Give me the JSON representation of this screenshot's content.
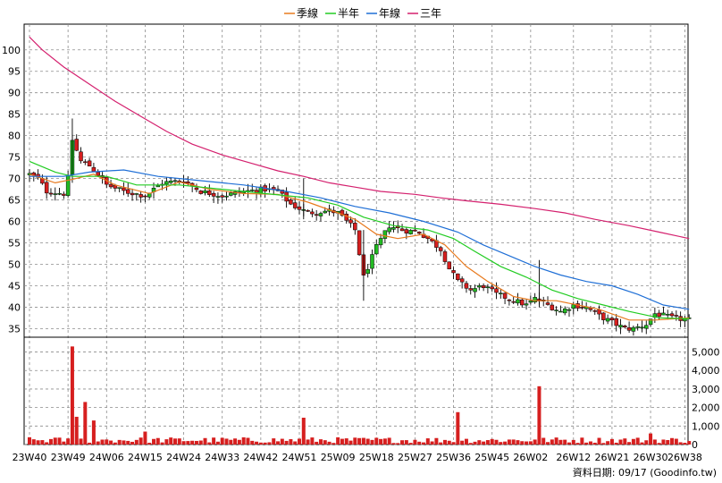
{
  "chart_data": {
    "type": "candlestick",
    "legend": [
      {
        "name": "季線",
        "color": "#e87a1e"
      },
      {
        "name": "半年",
        "color": "#22cc22"
      },
      {
        "name": "年線",
        "color": "#1f6fd6"
      },
      {
        "name": "三年",
        "color": "#d4206e"
      }
    ],
    "price_ylim": [
      33,
      106
    ],
    "price_ticks": [
      35,
      40,
      45,
      50,
      55,
      60,
      65,
      70,
      75,
      80,
      85,
      90,
      95,
      100
    ],
    "volume_ylim": [
      0,
      5800
    ],
    "volume_ticks": [
      0,
      1000,
      2000,
      3000,
      4000,
      5000
    ],
    "volume_tick_labels": [
      "0",
      "1,000",
      "2,000",
      "3,000",
      "4,000",
      "5,000"
    ],
    "x_tick_labels": [
      "23W40",
      "23W49",
      "24W06",
      "24W15",
      "24W24",
      "24W33",
      "24W42",
      "24W51",
      "25W09",
      "25W18",
      "25W27",
      "25W36",
      "25W45",
      "26W02",
      "26W12",
      "26W21",
      "26W30",
      "26W38"
    ],
    "x_tick_index": [
      0,
      9,
      18,
      27,
      36,
      45,
      54,
      63,
      72,
      81,
      90,
      99,
      108,
      117,
      127,
      136,
      145,
      153
    ],
    "grid": true,
    "legend_position": "top-center",
    "ma_series": [
      {
        "name": "季線",
        "color": "#e87a1e",
        "points": [
          [
            0,
            71
          ],
          [
            6,
            69
          ],
          [
            10,
            69.8
          ],
          [
            15,
            71
          ],
          [
            20,
            68.5
          ],
          [
            28,
            66.5
          ],
          [
            35,
            69.2
          ],
          [
            42,
            67.5
          ],
          [
            50,
            66.5
          ],
          [
            58,
            66.3
          ],
          [
            65,
            64.5
          ],
          [
            72,
            62
          ],
          [
            76,
            60.5
          ],
          [
            81,
            57
          ],
          [
            86,
            56
          ],
          [
            92,
            57
          ],
          [
            97,
            54.5
          ],
          [
            102,
            49.5
          ],
          [
            107,
            46
          ],
          [
            113,
            42.5
          ],
          [
            118,
            41.5
          ],
          [
            123,
            41.5
          ],
          [
            128,
            40.5
          ],
          [
            133,
            39.5
          ],
          [
            140,
            37
          ],
          [
            146,
            37
          ],
          [
            154,
            37.5
          ]
        ]
      },
      {
        "name": "半年",
        "color": "#22cc22",
        "points": [
          [
            0,
            74
          ],
          [
            6,
            71.5
          ],
          [
            10,
            70.5
          ],
          [
            18,
            70.5
          ],
          [
            25,
            68.5
          ],
          [
            35,
            68.5
          ],
          [
            45,
            67.5
          ],
          [
            55,
            66.5
          ],
          [
            65,
            65.5
          ],
          [
            72,
            63.8
          ],
          [
            78,
            61
          ],
          [
            85,
            59
          ],
          [
            93,
            58
          ],
          [
            99,
            56
          ],
          [
            104,
            53
          ],
          [
            110,
            49.5
          ],
          [
            116,
            47
          ],
          [
            122,
            44
          ],
          [
            128,
            42
          ],
          [
            134,
            40.5
          ],
          [
            140,
            39
          ],
          [
            147,
            37.5
          ],
          [
            154,
            37.3
          ]
        ]
      },
      {
        "name": "年線",
        "color": "#1f6fd6",
        "points": [
          [
            0,
            70.5
          ],
          [
            8,
            70.5
          ],
          [
            14,
            71.5
          ],
          [
            22,
            72
          ],
          [
            30,
            70.5
          ],
          [
            40,
            69.5
          ],
          [
            50,
            68.5
          ],
          [
            60,
            67
          ],
          [
            68,
            65.5
          ],
          [
            76,
            63.5
          ],
          [
            84,
            62
          ],
          [
            92,
            60
          ],
          [
            100,
            57.5
          ],
          [
            106,
            54.5
          ],
          [
            112,
            52
          ],
          [
            118,
            49.5
          ],
          [
            124,
            47.5
          ],
          [
            130,
            46
          ],
          [
            136,
            45
          ],
          [
            142,
            43
          ],
          [
            148,
            40.5
          ],
          [
            154,
            39.5
          ]
        ]
      },
      {
        "name": "三年",
        "color": "#d4206e",
        "points": [
          [
            0,
            103
          ],
          [
            3,
            100
          ],
          [
            8,
            96
          ],
          [
            14,
            92
          ],
          [
            20,
            88
          ],
          [
            26,
            84.5
          ],
          [
            32,
            81
          ],
          [
            38,
            78
          ],
          [
            45,
            75.5
          ],
          [
            52,
            73.5
          ],
          [
            58,
            71.8
          ],
          [
            64,
            70.5
          ],
          [
            70,
            69
          ],
          [
            76,
            68
          ],
          [
            82,
            67
          ],
          [
            90,
            66.3
          ],
          [
            96,
            65.5
          ],
          [
            102,
            64.8
          ],
          [
            110,
            64
          ],
          [
            118,
            63
          ],
          [
            125,
            62
          ],
          [
            132,
            60.5
          ],
          [
            140,
            59
          ],
          [
            147,
            57.5
          ],
          [
            154,
            56
          ]
        ]
      }
    ],
    "price_keypoints": [
      [
        0,
        71
      ],
      [
        2,
        70
      ],
      [
        4,
        67
      ],
      [
        8,
        66.5
      ],
      [
        9,
        70
      ],
      [
        10,
        79
      ],
      [
        12,
        74
      ],
      [
        14,
        73
      ],
      [
        16,
        71
      ],
      [
        18,
        68.5
      ],
      [
        22,
        67
      ],
      [
        27,
        66
      ],
      [
        31,
        69
      ],
      [
        36,
        69.5
      ],
      [
        40,
        67
      ],
      [
        45,
        66
      ],
      [
        50,
        67
      ],
      [
        55,
        67.5
      ],
      [
        58,
        67
      ],
      [
        61,
        64
      ],
      [
        65,
        62
      ],
      [
        70,
        62.5
      ],
      [
        72,
        62
      ],
      [
        74,
        60
      ],
      [
        76,
        58
      ],
      [
        78,
        47
      ],
      [
        81,
        54
      ],
      [
        84,
        59
      ],
      [
        87,
        58
      ],
      [
        91,
        57.5
      ],
      [
        93,
        56
      ],
      [
        96,
        53.5
      ],
      [
        98,
        49
      ],
      [
        100,
        46
      ],
      [
        103,
        44
      ],
      [
        106,
        45
      ],
      [
        109,
        43
      ],
      [
        112,
        42
      ],
      [
        116,
        40.5
      ],
      [
        118,
        42
      ],
      [
        121,
        40.5
      ],
      [
        124,
        39
      ],
      [
        127,
        40.5
      ],
      [
        130,
        40
      ],
      [
        133,
        38
      ],
      [
        136,
        36.5
      ],
      [
        139,
        35
      ],
      [
        141,
        35
      ],
      [
        144,
        36
      ],
      [
        146,
        38.5
      ],
      [
        150,
        37.5
      ],
      [
        154,
        37
      ]
    ],
    "volume_peaks": [
      [
        10,
        5300
      ],
      [
        11,
        1500
      ],
      [
        13,
        2300
      ],
      [
        15,
        1300
      ],
      [
        27,
        700
      ],
      [
        64,
        1450
      ],
      [
        100,
        1750
      ],
      [
        119,
        3150
      ],
      [
        145,
        600
      ]
    ],
    "footer_label": "資料日期: 09/17  (Goodinfo.tw)",
    "colors": {
      "up": "#22bb22",
      "down": "#d61f1f",
      "volume": "#d61f1f",
      "grid": "#8c8c8c"
    }
  }
}
